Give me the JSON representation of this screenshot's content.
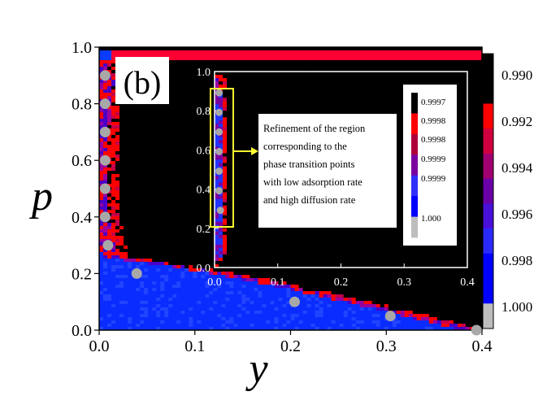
{
  "chart_data": [
    {
      "type": "heatmap",
      "panel_label": "(b)",
      "xlabel": "y",
      "ylabel": "p",
      "xlim": [
        0.0,
        0.4
      ],
      "ylim": [
        0.0,
        1.0
      ],
      "x_ticks": [
        0.0,
        0.1,
        0.2,
        0.3,
        0.4
      ],
      "y_ticks": [
        0.0,
        0.2,
        0.4,
        0.6,
        0.8,
        1.0
      ],
      "x_tick_labels": [
        "0.0",
        "0.1",
        "0.2",
        "0.3",
        "0.4"
      ],
      "y_tick_labels": [
        "0.0",
        "0.2",
        "0.4",
        "0.6",
        "0.8",
        "1.0"
      ],
      "colorbar": {
        "labels": [
          "0.990",
          "0.992",
          "0.994",
          "0.996",
          "0.998",
          "1.000"
        ],
        "colors": [
          "#000000",
          "#ff0000",
          "#d4003a",
          "#8a0066",
          "#5a00b0",
          "#3333ff",
          "#0000ff",
          "#bdbdbd"
        ]
      },
      "transition_points": [
        {
          "x": 0.002,
          "y": 0.9
        },
        {
          "x": 0.002,
          "y": 0.8
        },
        {
          "x": 0.002,
          "y": 0.7
        },
        {
          "x": 0.002,
          "y": 0.6
        },
        {
          "x": 0.002,
          "y": 0.5
        },
        {
          "x": 0.002,
          "y": 0.4
        },
        {
          "x": 0.005,
          "y": 0.3
        },
        {
          "x": 0.035,
          "y": 0.2
        },
        {
          "x": 0.2,
          "y": 0.1
        },
        {
          "x": 0.3,
          "y": 0.05
        },
        {
          "x": 0.39,
          "y": 0.0
        }
      ],
      "grid": false
    },
    {
      "type": "heatmap",
      "role": "inset",
      "xlim": [
        0.0,
        0.4
      ],
      "ylim": [
        0.0,
        1.0
      ],
      "x_tick_labels": [
        "0.0",
        "0.1",
        "0.2",
        "0.3",
        "0.4"
      ],
      "y_tick_labels": [
        "0.0",
        "0.2",
        "0.4",
        "0.6",
        "0.8",
        "1.0"
      ],
      "colorbar": {
        "labels": [
          "0.9997",
          "0.9998",
          "0.9998",
          "0.9999",
          "0.9999",
          "1.000"
        ],
        "colors": [
          "#000000",
          "#ff0000",
          "#b0003c",
          "#7a00a0",
          "#3030ff",
          "#0000ff",
          "#bdbdbd"
        ]
      },
      "transition_points": [
        {
          "x": 0.002,
          "y": 0.9
        },
        {
          "x": 0.002,
          "y": 0.8
        },
        {
          "x": 0.002,
          "y": 0.7
        },
        {
          "x": 0.002,
          "y": 0.6
        },
        {
          "x": 0.002,
          "y": 0.5
        },
        {
          "x": 0.002,
          "y": 0.4
        },
        {
          "x": 0.004,
          "y": 0.3
        }
      ],
      "annotation": [
        "Refinement of the region",
        "corresponding to the",
        "phase transition points",
        "with low adsorption rate",
        "and high diffusion rate"
      ],
      "highlight_color": "#ffff33"
    }
  ]
}
